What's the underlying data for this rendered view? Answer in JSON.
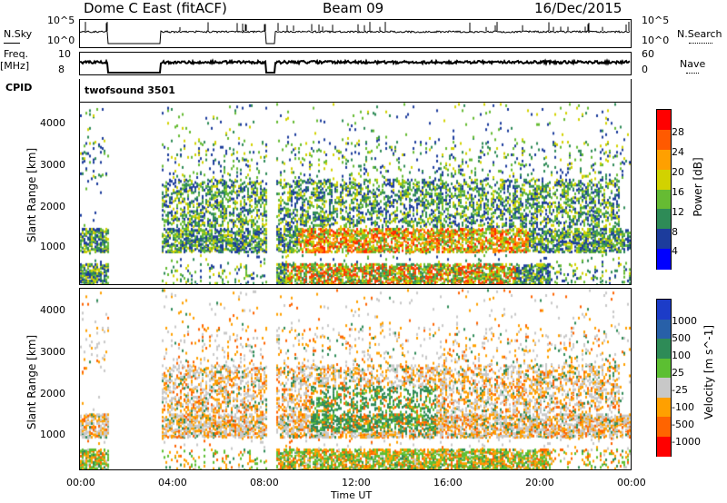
{
  "header": {
    "title": "Dome C East (fitACF)",
    "beam": "Beam 09",
    "date": "16/Dec/2015"
  },
  "top_panels": {
    "nsky_label": "N.Sky",
    "nsky_ticks": [
      "10^5",
      "10^0"
    ],
    "nsearch_label": "N.Search",
    "nsearch_ticks": [
      "10^5",
      "10^0"
    ],
    "freq_label": "Freq.",
    "freq_unit": "[MHz]",
    "freq_ticks": [
      "10",
      "8"
    ],
    "nave_label": "Nave",
    "nave_ticks": [
      "60",
      "0"
    ],
    "cpid_label": "CPID",
    "cpid_value": "twofsound 3501"
  },
  "chart_data": [
    {
      "type": "heatmap",
      "panel": "power",
      "ylabel": "Slant Range [km]",
      "yticks": [
        "4000",
        "3000",
        "2000",
        "1000"
      ],
      "ylim": [
        180,
        4500
      ],
      "xticks": [
        "00:00",
        "04:00",
        "08:00",
        "12:00",
        "16:00",
        "20:00",
        "00:00"
      ],
      "xlim_hours": [
        0,
        24
      ],
      "colorbar_label": "Power [dB]",
      "colorbar_ticks": [
        "28",
        "24",
        "20",
        "16",
        "12",
        "8",
        "4"
      ],
      "colorbar_colors": [
        "#ff0000",
        "#ff5a00",
        "#ffa000",
        "#d2d200",
        "#66bb33",
        "#2e8b57",
        "#1c3c9c",
        "#0000ff"
      ],
      "data_gaps_hours": [
        [
          1.2,
          3.5
        ],
        [
          8.1,
          8.5
        ]
      ]
    },
    {
      "type": "heatmap",
      "panel": "velocity",
      "ylabel": "Slant Range [km]",
      "yticks": [
        "4000",
        "3000",
        "2000",
        "1000"
      ],
      "ylim": [
        180,
        4500
      ],
      "xticks": [
        "00:00",
        "04:00",
        "08:00",
        "12:00",
        "16:00",
        "20:00",
        "00:00"
      ],
      "xlim_hours": [
        0,
        24
      ],
      "xlabel": "Time UT",
      "colorbar_label": "Velocity [m s^-1]",
      "colorbar_ticks": [
        "1000",
        "500",
        "100",
        "25",
        "-25",
        "-100",
        "-500",
        "-1000"
      ],
      "colorbar_colors": [
        "#1c3cc8",
        "#2860a8",
        "#2e8b57",
        "#5cbf32",
        "#c8c8c8",
        "#ffa000",
        "#ff6400",
        "#ff0000"
      ],
      "data_gaps_hours": [
        [
          1.2,
          3.5
        ],
        [
          8.1,
          8.5
        ]
      ]
    }
  ]
}
